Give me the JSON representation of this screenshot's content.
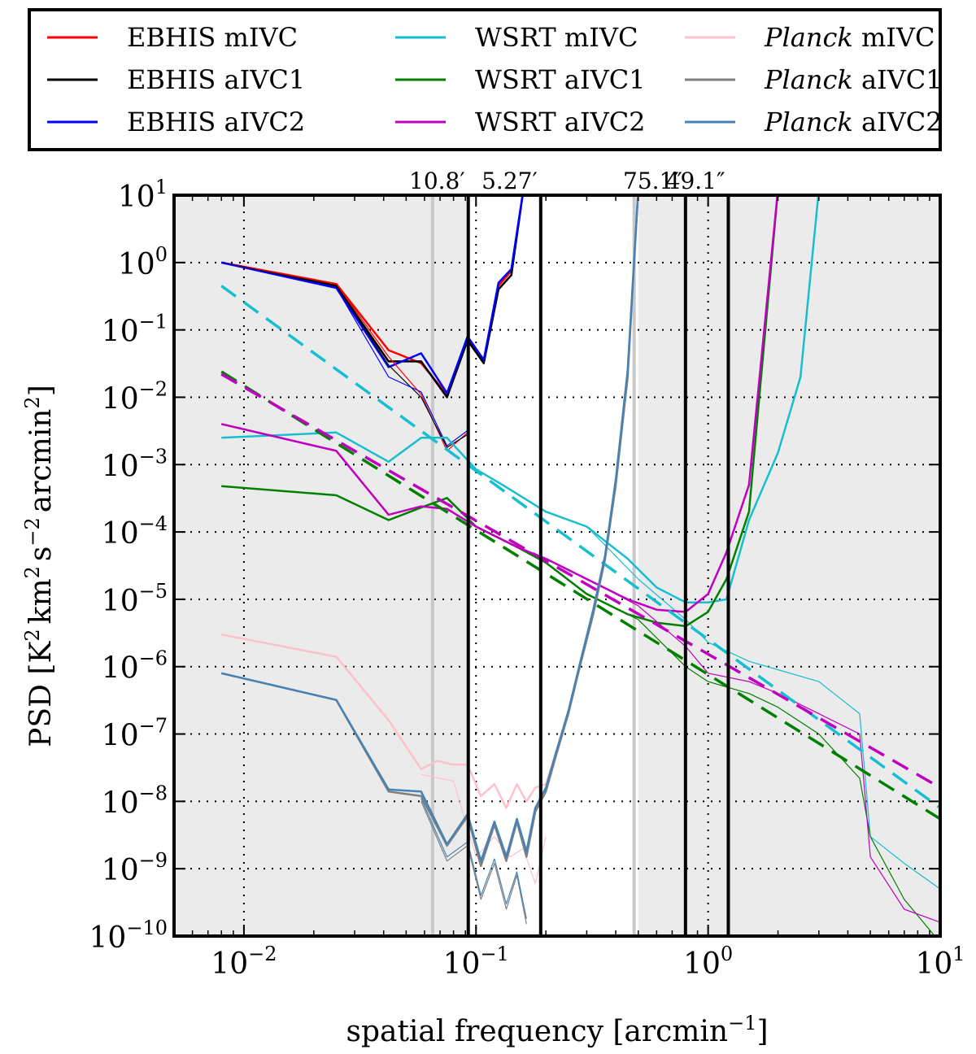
{
  "chart_data": {
    "type": "line",
    "title": "",
    "xlabel_prefix": "spatial frequency [arcmin",
    "xlabel_sup": "−1",
    "xlabel_suffix": "]",
    "ylabel_prefix": "PSD [K",
    "ylabel_part1": "2",
    "ylabel_mid1": "km",
    "ylabel_part2": "2",
    "ylabel_mid2": "s",
    "ylabel_part3": "−2",
    "ylabel_mid3": "arcmin",
    "ylabel_part4": "2",
    "ylabel_suffix": "]",
    "x_scale": "log",
    "y_scale": "log",
    "xlim": [
      0.005,
      10
    ],
    "ylim": [
      1e-10,
      10
    ],
    "x_ticks": [
      {
        "value": 0.01,
        "base": "10",
        "exp": "−2"
      },
      {
        "value": 0.1,
        "base": "10",
        "exp": "−1"
      },
      {
        "value": 1,
        "base": "10",
        "exp": "0"
      },
      {
        "value": 10,
        "base": "10",
        "exp": "1"
      }
    ],
    "y_ticks": [
      {
        "value": 10,
        "base": "10",
        "exp": "1"
      },
      {
        "value": 1,
        "base": "10",
        "exp": "0"
      },
      {
        "value": 0.1,
        "base": "10",
        "exp": "−1"
      },
      {
        "value": 0.01,
        "base": "10",
        "exp": "−2"
      },
      {
        "value": 0.001,
        "base": "10",
        "exp": "−3"
      },
      {
        "value": 0.0001,
        "base": "10",
        "exp": "−4"
      },
      {
        "value": 1e-05,
        "base": "10",
        "exp": "−5"
      },
      {
        "value": 1e-06,
        "base": "10",
        "exp": "−6"
      },
      {
        "value": 1e-07,
        "base": "10",
        "exp": "−7"
      },
      {
        "value": 1e-08,
        "base": "10",
        "exp": "−8"
      },
      {
        "value": 1e-09,
        "base": "10",
        "exp": "−9"
      },
      {
        "value": 1e-10,
        "base": "10",
        "exp": "−10"
      }
    ],
    "grid": "dotted at major ticks",
    "legend": {
      "placement": "top, outside axes",
      "entries": [
        {
          "name": "EBHIS mIVC",
          "prefix": "",
          "label": "EBHIS mIVC",
          "color": "#ff0000"
        },
        {
          "name": "EBHIS aIVC1",
          "prefix": "",
          "label": "EBHIS aIVC1",
          "color": "#000000"
        },
        {
          "name": "EBHIS aIVC2",
          "prefix": "",
          "label": "EBHIS aIVC2",
          "color": "#0000ff"
        },
        {
          "name": "WSRT mIVC",
          "prefix": "",
          "label": "WSRT mIVC",
          "color": "#17becf"
        },
        {
          "name": "WSRT aIVC1",
          "prefix": "",
          "label": "WSRT aIVC1",
          "color": "#008000"
        },
        {
          "name": "WSRT aIVC2",
          "prefix": "",
          "label": "WSRT aIVC2",
          "color": "#bf00bf"
        },
        {
          "name": "Planck mIVC",
          "prefix": "Planck",
          "label": " mIVC",
          "color": "#ffc0cb"
        },
        {
          "name": "Planck aIVC1",
          "prefix": "Planck",
          "label": " aIVC1",
          "color": "#808080"
        },
        {
          "name": "Planck aIVC2",
          "prefix": "Planck",
          "label": " aIVC2",
          "color": "#4682b4"
        }
      ]
    },
    "shaded_regions": [
      {
        "x0": 0.005,
        "x1": 0.0926,
        "color": "#ebebeb"
      },
      {
        "x0": 0.5,
        "x1": 10,
        "color": "#ebebeb"
      }
    ],
    "gray_vlines": [
      0.065,
      0.48
    ],
    "beam_lines": [
      {
        "x": 0.0926,
        "label": "10.8′"
      },
      {
        "x": 0.19,
        "label": "5.27′"
      },
      {
        "x": 0.799,
        "label": "75.1″"
      },
      {
        "x": 1.222,
        "label": "49.1″"
      }
    ],
    "series": [
      {
        "name": "EBHIS mIVC",
        "color": "#ff0000",
        "width": 2.5,
        "x": [
          0.008,
          0.025,
          0.042,
          0.058,
          0.075,
          0.092,
          0.108,
          0.125,
          0.142,
          0.16
        ],
        "y": [
          1.0,
          0.48,
          0.05,
          0.032,
          0.011,
          0.075,
          0.035,
          0.45,
          0.75,
          12
        ]
      },
      {
        "name": "EBHIS aIVC1",
        "color": "#000000",
        "width": 2.5,
        "x": [
          0.008,
          0.025,
          0.042,
          0.058,
          0.075,
          0.092,
          0.108,
          0.125,
          0.142,
          0.16
        ],
        "y": [
          1.0,
          0.45,
          0.034,
          0.034,
          0.01,
          0.07,
          0.032,
          0.4,
          0.65,
          12
        ]
      },
      {
        "name": "EBHIS aIVC2",
        "color": "#0000ff",
        "width": 2.5,
        "x": [
          0.008,
          0.025,
          0.042,
          0.058,
          0.075,
          0.092,
          0.108,
          0.125,
          0.142,
          0.16
        ],
        "y": [
          1.0,
          0.42,
          0.028,
          0.045,
          0.0115,
          0.08,
          0.036,
          0.5,
          0.8,
          12
        ]
      },
      {
        "name": "EBHIS mIVC (thin)",
        "color": "#ff0000",
        "width": 1.2,
        "x": [
          0.008,
          0.025,
          0.042,
          0.058,
          0.075,
          0.092
        ],
        "y": [
          1.0,
          0.48,
          0.04,
          0.011,
          0.0016,
          0.003
        ]
      },
      {
        "name": "EBHIS aIVC1 (thin)",
        "color": "#000000",
        "width": 1.2,
        "x": [
          0.008,
          0.025,
          0.042,
          0.058,
          0.075,
          0.092
        ],
        "y": [
          1.0,
          0.45,
          0.03,
          0.01,
          0.0018,
          0.0028
        ]
      },
      {
        "name": "EBHIS aIVC2 (thin)",
        "color": "#0000ff",
        "width": 1.2,
        "x": [
          0.008,
          0.025,
          0.042,
          0.058,
          0.075,
          0.092
        ],
        "y": [
          1.0,
          0.42,
          0.02,
          0.012,
          0.0019,
          0.0032
        ]
      },
      {
        "name": "WSRT mIVC",
        "color": "#17becf",
        "width": 2.5,
        "x": [
          0.008,
          0.025,
          0.042,
          0.058,
          0.075,
          0.1,
          0.13,
          0.2,
          0.3,
          0.45,
          0.6,
          0.8,
          1.0,
          1.2,
          1.5,
          2.0,
          2.5,
          3.0
        ],
        "y": [
          0.0025,
          0.003,
          0.0011,
          0.0025,
          0.0025,
          0.00085,
          0.0005,
          0.0002,
          0.00012,
          4e-05,
          1.5e-05,
          9e-06,
          9e-06,
          1e-05,
          0.00015,
          0.0015,
          0.02,
          12
        ]
      },
      {
        "name": "WSRT mIVC (thin)",
        "color": "#17becf",
        "width": 1.2,
        "x": [
          0.3,
          0.5,
          0.8,
          1.0,
          1.5,
          2.0,
          3.0,
          4.5,
          5.0,
          7.0,
          10.0
        ],
        "y": [
          0.00012,
          2e-05,
          5e-06,
          2.3e-06,
          1.2e-06,
          9e-07,
          6e-07,
          2e-07,
          3e-09,
          1.2e-09,
          5e-10
        ]
      },
      {
        "name": "WSRT aIVC1",
        "color": "#008000",
        "width": 2.5,
        "x": [
          0.008,
          0.025,
          0.042,
          0.058,
          0.075,
          0.1,
          0.15,
          0.2,
          0.3,
          0.45,
          0.6,
          0.8,
          1.0,
          1.2,
          1.5,
          2.0
        ],
        "y": [
          0.00048,
          0.00035,
          0.00015,
          0.00023,
          0.00032,
          0.00012,
          6e-05,
          3.5e-05,
          1.2e-05,
          6e-06,
          4.5e-06,
          4e-06,
          6.5e-06,
          2e-05,
          0.0002,
          12
        ]
      },
      {
        "name": "WSRT aIVC1 (thin)",
        "color": "#008000",
        "width": 1.2,
        "x": [
          0.3,
          0.5,
          0.8,
          1.0,
          1.5,
          2.0,
          3.0,
          4.5,
          5.0,
          7.0,
          10.0
        ],
        "y": [
          1.2e-05,
          5e-06,
          1e-06,
          6e-07,
          4e-07,
          2.5e-07,
          1e-07,
          2.2e-08,
          3e-09,
          3.5e-10,
          8e-11
        ]
      },
      {
        "name": "WSRT aIVC2",
        "color": "#bf00bf",
        "width": 2.5,
        "x": [
          0.008,
          0.025,
          0.042,
          0.058,
          0.075,
          0.1,
          0.15,
          0.2,
          0.3,
          0.45,
          0.6,
          0.8,
          1.0,
          1.2,
          1.5,
          2.0
        ],
        "y": [
          0.004,
          0.0016,
          0.00018,
          0.00024,
          0.00022,
          0.00012,
          6e-05,
          4e-05,
          2e-05,
          1e-05,
          7e-06,
          6.5e-06,
          1.2e-05,
          5e-05,
          0.0005,
          12
        ]
      },
      {
        "name": "WSRT aIVC2 (thin)",
        "color": "#bf00bf",
        "width": 1.2,
        "x": [
          0.3,
          0.5,
          0.8,
          1.0,
          1.5,
          2.0,
          3.0,
          4.5,
          5.0,
          7.0,
          10.0
        ],
        "y": [
          2e-05,
          8e-06,
          2e-06,
          8e-07,
          6e-07,
          4e-07,
          2e-07,
          1e-07,
          1.5e-09,
          2.5e-10,
          1.6e-10
        ]
      },
      {
        "name": "WSRT mIVC fit",
        "color": "#17becf",
        "width": 3.5,
        "dashed": true,
        "x": [
          0.008,
          10
        ],
        "y": [
          0.45,
          8e-09
        ]
      },
      {
        "name": "WSRT aIVC1 fit",
        "color": "#008000",
        "width": 3.5,
        "dashed": true,
        "x": [
          0.008,
          10
        ],
        "y": [
          0.024,
          5.5e-09
        ]
      },
      {
        "name": "WSRT aIVC2 fit",
        "color": "#bf00bf",
        "width": 3.5,
        "dashed": true,
        "x": [
          0.008,
          10
        ],
        "y": [
          0.022,
          1.6e-08
        ]
      },
      {
        "name": "Planck mIVC",
        "color": "#ffc0cb",
        "width": 2.5,
        "x": [
          0.008,
          0.025,
          0.042,
          0.058,
          0.068,
          0.08,
          0.092,
          0.105,
          0.12,
          0.135,
          0.15,
          0.165,
          0.18,
          0.2,
          0.22,
          0.25,
          0.28,
          0.32,
          0.36,
          0.4,
          0.45,
          0.5
        ],
        "y": [
          3e-06,
          1.4e-06,
          1.6e-07,
          3e-08,
          4e-08,
          3.5e-08,
          3.5e-08,
          1.2e-08,
          1.8e-08,
          8e-09,
          1.8e-08,
          1e-08,
          1.6e-08,
          1.8e-08,
          5e-08,
          2e-07,
          1e-06,
          6e-06,
          4e-05,
          0.0005,
          0.02,
          12
        ]
      },
      {
        "name": "Planck mIVC (thin)",
        "color": "#ffc0cb",
        "width": 1.2,
        "x": [
          0.058,
          0.08,
          0.1,
          0.12,
          0.14,
          0.16,
          0.18,
          0.2
        ],
        "y": [
          2.5e-08,
          2e-08,
          1.5e-09,
          3e-09,
          1.5e-09,
          2e-09,
          6e-10,
          3e-09
        ]
      },
      {
        "name": "Planck aIVC1",
        "color": "#808080",
        "width": 2.5,
        "x": [
          0.008,
          0.025,
          0.042,
          0.058,
          0.075,
          0.092,
          0.105,
          0.12,
          0.135,
          0.15,
          0.165,
          0.18,
          0.2,
          0.22,
          0.25,
          0.28,
          0.32,
          0.36,
          0.4,
          0.45,
          0.5
        ],
        "y": [
          8e-07,
          3.2e-07,
          1.4e-08,
          1.2e-08,
          2.2e-09,
          6e-09,
          1.1e-09,
          4.5e-09,
          1.3e-09,
          5e-09,
          1.5e-09,
          7e-09,
          1.4e-08,
          4.5e-08,
          2e-07,
          1e-06,
          6e-06,
          4e-05,
          0.0005,
          0.02,
          12
        ]
      },
      {
        "name": "Planck aIVC2",
        "color": "#4682b4",
        "width": 2.5,
        "x": [
          0.008,
          0.025,
          0.042,
          0.058,
          0.075,
          0.092,
          0.105,
          0.12,
          0.135,
          0.15,
          0.165,
          0.18,
          0.2,
          0.22,
          0.25,
          0.28,
          0.32,
          0.36,
          0.4,
          0.45,
          0.5
        ],
        "y": [
          8e-07,
          3.2e-07,
          1.5e-08,
          1.4e-08,
          2.3e-09,
          6.5e-09,
          1.3e-09,
          5e-09,
          1.5e-09,
          5.5e-09,
          1.8e-09,
          8e-09,
          1.6e-08,
          5e-08,
          2.2e-07,
          1.1e-06,
          7e-06,
          4.5e-05,
          0.0006,
          0.025,
          12
        ]
      },
      {
        "name": "Planck aIVC1 (thin)",
        "color": "#808080",
        "width": 1.2,
        "x": [
          0.058,
          0.075,
          0.092,
          0.105,
          0.12,
          0.135,
          0.15,
          0.165
        ],
        "y": [
          1e-08,
          1.3e-09,
          2.2e-09,
          3.5e-10,
          1.2e-09,
          2.5e-10,
          8e-10,
          1.5e-10
        ]
      },
      {
        "name": "Planck aIVC2 (thin)",
        "color": "#4682b4",
        "width": 1.2,
        "x": [
          0.058,
          0.075,
          0.092,
          0.105,
          0.12,
          0.135,
          0.15,
          0.165
        ],
        "y": [
          1.1e-08,
          1.5e-09,
          2.5e-09,
          4e-10,
          1.4e-09,
          3e-10,
          9e-10,
          1.8e-10
        ]
      }
    ]
  }
}
